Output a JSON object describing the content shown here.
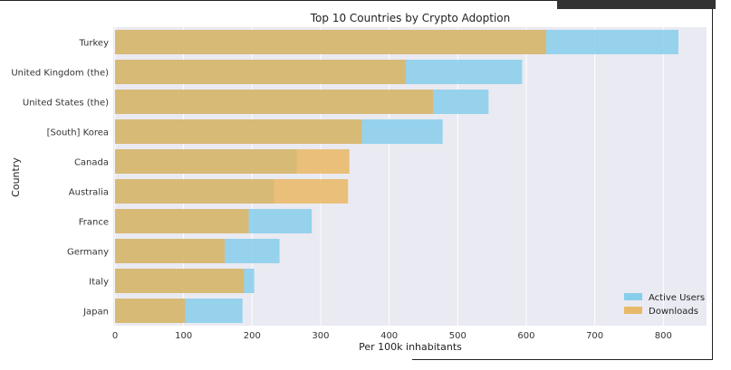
{
  "chart_data": {
    "type": "bar",
    "orientation": "horizontal",
    "title": "Top 10 Countries by Crypto Adoption",
    "xlabel": "Per 100k inhabitants",
    "ylabel": "Country",
    "categories": [
      "Turkey",
      "United Kingdom (the)",
      "United States (the)",
      "[South] Korea",
      "Canada",
      "Australia",
      "France",
      "Germany",
      "Italy",
      "Japan"
    ],
    "series": [
      {
        "name": "Active Users",
        "color": "#87CEEB",
        "values": [
          822,
          594,
          545,
          478,
          265,
          232,
          287,
          240,
          203,
          186
        ]
      },
      {
        "name": "Downloads",
        "color": "#E8B45A",
        "values": [
          629,
          424,
          464,
          360,
          342,
          340,
          195,
          160,
          188,
          102
        ]
      }
    ],
    "xlim": [
      0,
      860
    ],
    "xticks": [
      0,
      100,
      200,
      300,
      400,
      500,
      600,
      700,
      800
    ],
    "grid": true,
    "legend": "bottom-right"
  }
}
